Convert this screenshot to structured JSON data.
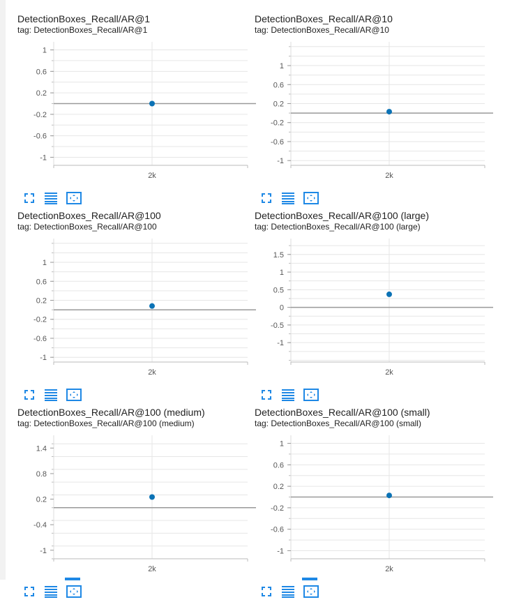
{
  "theme": {
    "dot_color": "#0b72b5",
    "accent": "#1e88e5",
    "zero_line": "#999999",
    "grid": "#e6e6e6"
  },
  "cards": [
    {
      "title": "DetectionBoxes_Recall/AR@1",
      "tag": "tag: DetectionBoxes_Recall/AR@1"
    },
    {
      "title": "DetectionBoxes_Recall/AR@10",
      "tag": "tag: DetectionBoxes_Recall/AR@10"
    },
    {
      "title": "DetectionBoxes_Recall/AR@100",
      "tag": "tag: DetectionBoxes_Recall/AR@100"
    },
    {
      "title": "DetectionBoxes_Recall/AR@100 (large)",
      "tag": "tag: DetectionBoxes_Recall/AR@100 (large)"
    },
    {
      "title": "DetectionBoxes_Recall/AR@100 (medium)",
      "tag": "tag: DetectionBoxes_Recall/AR@100 (medium)"
    },
    {
      "title": "DetectionBoxes_Recall/AR@100 (small)",
      "tag": "tag: DetectionBoxes_Recall/AR@100 (small)"
    }
  ],
  "toolbar_icons": [
    "fullscreen-icon",
    "toggle-y-log-icon",
    "fit-domain-icon"
  ],
  "chart_data": [
    {
      "type": "scatter",
      "title": "DetectionBoxes_Recall/AR@1",
      "x_ticks": [
        "2k"
      ],
      "x": [
        2000
      ],
      "y": [
        0.0
      ],
      "ylim": [
        -1.15,
        1.15
      ],
      "y_ticks": [
        1,
        0.6,
        0.2,
        -0.2,
        -0.6,
        -1
      ],
      "grid": true
    },
    {
      "type": "scatter",
      "title": "DetectionBoxes_Recall/AR@10",
      "x_ticks": [
        "2k"
      ],
      "x": [
        2000
      ],
      "y": [
        0.03
      ],
      "ylim": [
        -1.1,
        1.5
      ],
      "y_ticks": [
        1,
        0.6,
        0.2,
        -0.2,
        -0.6,
        -1
      ],
      "grid": true
    },
    {
      "type": "scatter",
      "title": "DetectionBoxes_Recall/AR@100",
      "x_ticks": [
        "2k"
      ],
      "x": [
        2000
      ],
      "y": [
        0.08
      ],
      "ylim": [
        -1.1,
        1.5
      ],
      "y_ticks": [
        1,
        0.6,
        0.2,
        -0.2,
        -0.6,
        -1
      ],
      "grid": true
    },
    {
      "type": "scatter",
      "title": "DetectionBoxes_Recall/AR@100 (large)",
      "x_ticks": [
        "2k"
      ],
      "x": [
        2000
      ],
      "y": [
        0.37
      ],
      "ylim": [
        -1.55,
        1.95
      ],
      "y_ticks": [
        1.5,
        1,
        0.5,
        0,
        -0.5,
        -1
      ],
      "grid": true
    },
    {
      "type": "scatter",
      "title": "DetectionBoxes_Recall/AR@100 (medium)",
      "x_ticks": [
        "2k"
      ],
      "x": [
        2000
      ],
      "y": [
        0.25
      ],
      "ylim": [
        -1.2,
        1.7
      ],
      "y_ticks": [
        1.4,
        0.8,
        0.2,
        -0.4,
        -1
      ],
      "grid": true
    },
    {
      "type": "scatter",
      "title": "DetectionBoxes_Recall/AR@100 (small)",
      "x_ticks": [
        "2k"
      ],
      "x": [
        2000
      ],
      "y": [
        0.03
      ],
      "ylim": [
        -1.15,
        1.15
      ],
      "y_ticks": [
        1,
        0.6,
        0.2,
        -0.2,
        -0.6,
        -1
      ],
      "grid": true
    }
  ]
}
